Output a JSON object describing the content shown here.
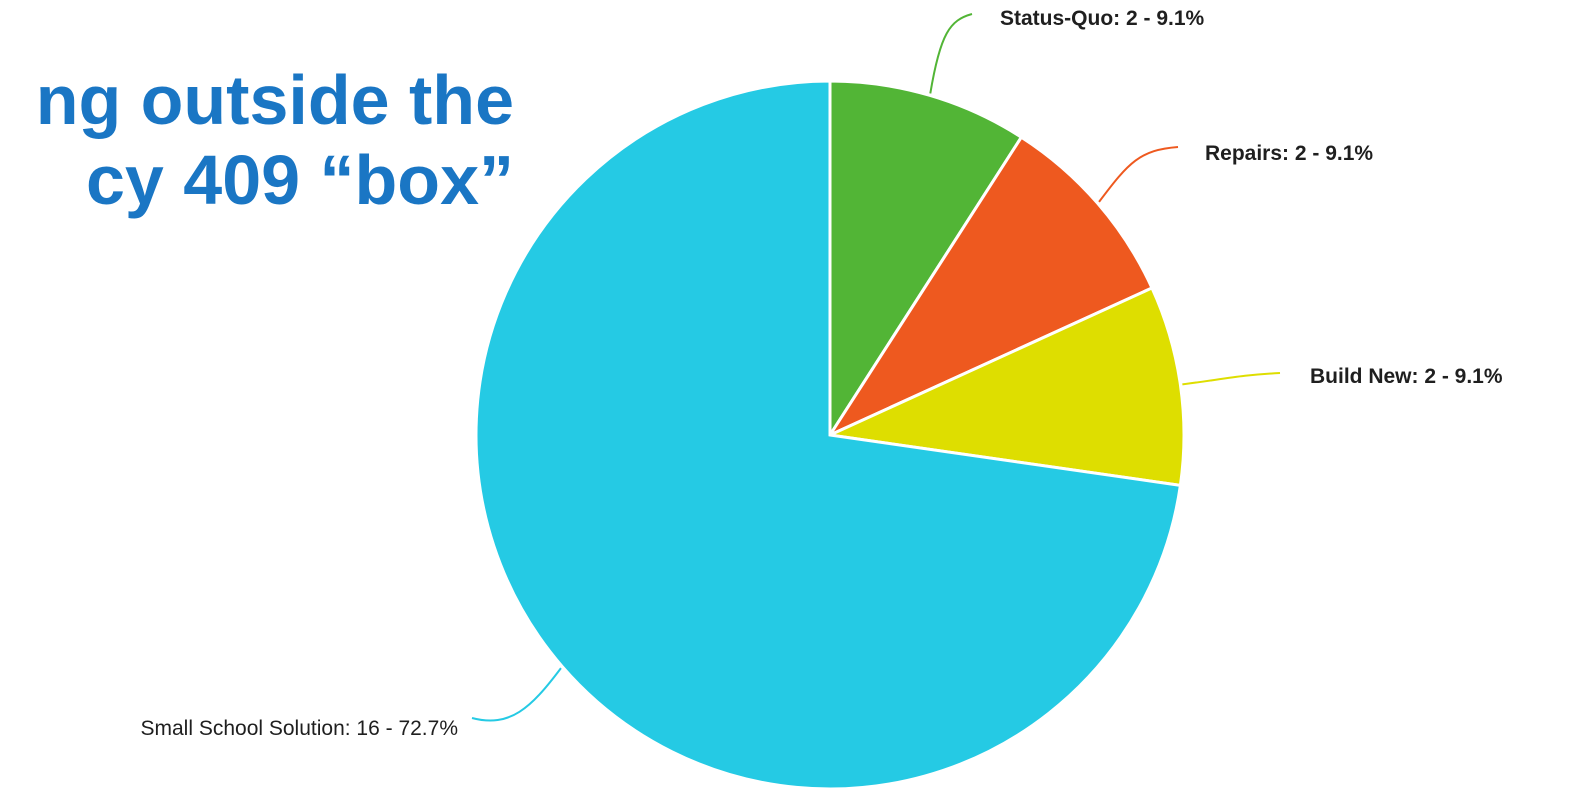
{
  "slide": {
    "title_line1": "ng outside the",
    "title_line2": "cy 409 “box”"
  },
  "chart_data": {
    "type": "pie",
    "title": "",
    "slices": [
      {
        "label": "Status-Quo",
        "value": 2,
        "percent": 9.1,
        "text": "Status-Quo: 2 - 9.1%",
        "color": "#52b536"
      },
      {
        "label": "Repairs",
        "value": 2,
        "percent": 9.1,
        "text": "Repairs: 2 - 9.1%",
        "color": "#ee591f"
      },
      {
        "label": "Build New",
        "value": 2,
        "percent": 9.1,
        "text": "Build New: 2 - 9.1%",
        "color": "#dede00"
      },
      {
        "label": "Small School Solution",
        "value": 16,
        "percent": 72.7,
        "text": "Small School Solution: 16 - 72.7%",
        "color": "#25cae4"
      }
    ],
    "start_angle": "12 o'clock",
    "direction": "clockwise",
    "legend": "none (leader-line labels)"
  }
}
